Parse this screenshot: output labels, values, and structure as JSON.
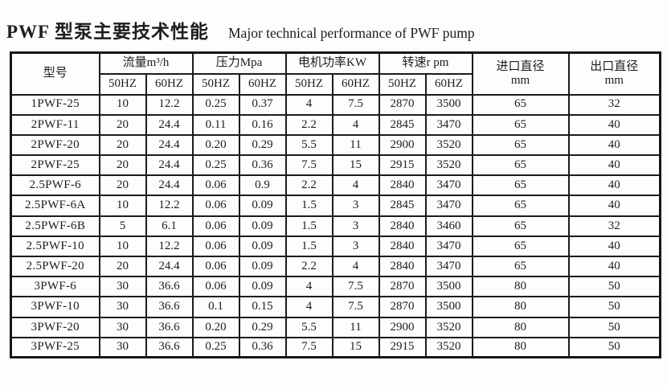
{
  "title": {
    "zh": "PWF 型泵主要技术性能",
    "en": "Major technical performance of PWF pump"
  },
  "table": {
    "headers": {
      "model": "型号",
      "groups": [
        {
          "label": "流量m³/h",
          "sub": [
            "50HZ",
            "60HZ"
          ]
        },
        {
          "label": "压力Mpa",
          "sub": [
            "50HZ",
            "60HZ"
          ]
        },
        {
          "label": "电机功率KW",
          "sub": [
            "50HZ",
            "60HZ"
          ]
        },
        {
          "label": "转速r pm",
          "sub": [
            "50HZ",
            "60HZ"
          ]
        }
      ],
      "inlet": {
        "label": "进口直径",
        "unit": "mm"
      },
      "outlet": {
        "label": "出口直径",
        "unit": "mm"
      }
    },
    "rows": [
      [
        "1PWF-25",
        "10",
        "12.2",
        "0.25",
        "0.37",
        "4",
        "7.5",
        "2870",
        "3500",
        "65",
        "32"
      ],
      [
        "2PWF-11",
        "20",
        "24.4",
        "0.11",
        "0.16",
        "2.2",
        "4",
        "2845",
        "3470",
        "65",
        "40"
      ],
      [
        "2PWF-20",
        "20",
        "24.4",
        "0.20",
        "0.29",
        "5.5",
        "11",
        "2900",
        "3520",
        "65",
        "40"
      ],
      [
        "2PWF-25",
        "20",
        "24.4",
        "0.25",
        "0.36",
        "7.5",
        "15",
        "2915",
        "3520",
        "65",
        "40"
      ],
      [
        "2.5PWF-6",
        "20",
        "24.4",
        "0.06",
        "0.9",
        "2.2",
        "4",
        "2840",
        "3470",
        "65",
        "40"
      ],
      [
        "2.5PWF-6A",
        "10",
        "12.2",
        "0.06",
        "0.09",
        "1.5",
        "3",
        "2845",
        "3470",
        "65",
        "40"
      ],
      [
        "2.5PWF-6B",
        "5",
        "6.1",
        "0.06",
        "0.09",
        "1.5",
        "3",
        "2840",
        "3460",
        "65",
        "32"
      ],
      [
        "2.5PWF-10",
        "10",
        "12.2",
        "0.06",
        "0.09",
        "1.5",
        "3",
        "2840",
        "3470",
        "65",
        "40"
      ],
      [
        "2.5PWF-20",
        "20",
        "24.4",
        "0.06",
        "0.09",
        "2.2",
        "4",
        "2840",
        "3470",
        "65",
        "40"
      ],
      [
        "3PWF-6",
        "30",
        "36.6",
        "0.06",
        "0.09",
        "4",
        "7.5",
        "2870",
        "3500",
        "80",
        "50"
      ],
      [
        "3PWF-10",
        "30",
        "36.6",
        "0.1",
        "0.15",
        "4",
        "7.5",
        "2870",
        "3500",
        "80",
        "50"
      ],
      [
        "3PWF-20",
        "30",
        "36.6",
        "0.20",
        "0.29",
        "5.5",
        "11",
        "2900",
        "3520",
        "80",
        "50"
      ],
      [
        "3PWF-25",
        "30",
        "36.6",
        "0.25",
        "0.36",
        "7.5",
        "15",
        "2915",
        "3520",
        "80",
        "50"
      ]
    ]
  }
}
